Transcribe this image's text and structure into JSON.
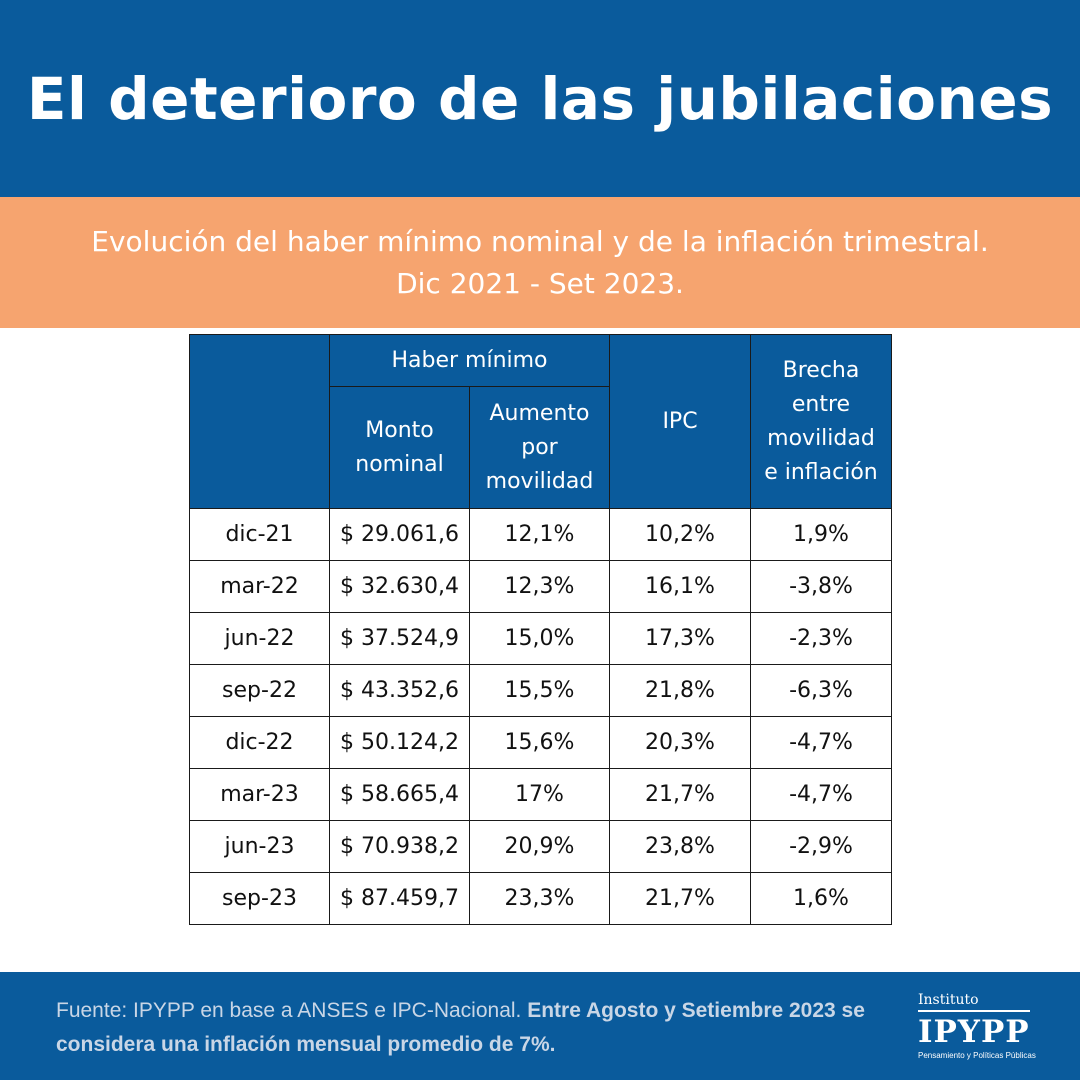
{
  "header": {
    "title": "El deterioro de las jubilaciones"
  },
  "subtitle": {
    "line1": "Evolución del haber mínimo nominal y de la inflación trimestral.",
    "line2": "Dic 2021 - Set 2023."
  },
  "table": {
    "group_header": "Haber mínimo",
    "headers": {
      "period": "",
      "monto": "Monto nominal",
      "aumento": "Aumento por movilidad",
      "ipc": "IPC",
      "brecha": "Brecha entre movilidad e inflación"
    },
    "rows": [
      {
        "period": "dic-21",
        "monto": "$ 29.061,6",
        "aumento": "12,1%",
        "ipc": "10,2%",
        "brecha": "1,9%"
      },
      {
        "period": "mar-22",
        "monto": "$ 32.630,4",
        "aumento": "12,3%",
        "ipc": "16,1%",
        "brecha": "-3,8%"
      },
      {
        "period": "jun-22",
        "monto": "$ 37.524,9",
        "aumento": "15,0%",
        "ipc": "17,3%",
        "brecha": "-2,3%"
      },
      {
        "period": "sep-22",
        "monto": "$ 43.352,6",
        "aumento": "15,5%",
        "ipc": "21,8%",
        "brecha": "-6,3%"
      },
      {
        "period": "dic-22",
        "monto": "$ 50.124,2",
        "aumento": "15,6%",
        "ipc": "20,3%",
        "brecha": "-4,7%"
      },
      {
        "period": "mar-23",
        "monto": "$ 58.665,4",
        "aumento": "17%",
        "ipc": "21,7%",
        "brecha": "-4,7%"
      },
      {
        "period": "jun-23",
        "monto": "$ 70.938,2",
        "aumento": "20,9%",
        "ipc": "23,8%",
        "brecha": "-2,9%"
      },
      {
        "period": "sep-23",
        "monto": "$ 87.459,7",
        "aumento": "23,3%",
        "ipc": "21,7%",
        "brecha": "1,6%"
      }
    ]
  },
  "footer": {
    "source": "Fuente: IPYPP en base a ANSES e IPC-Nacional.",
    "note": "Entre Agosto y Setiembre 2023 se considera una inflación mensual promedio de 7%."
  },
  "logo": {
    "small": "Instituto",
    "big": "IPYPP",
    "tagline": "Pensamiento y Políticas Públicas"
  },
  "colors": {
    "header_blue": "#0a5b9c",
    "band_orange": "#f6a46f",
    "negative_red": "#d63b3b"
  }
}
